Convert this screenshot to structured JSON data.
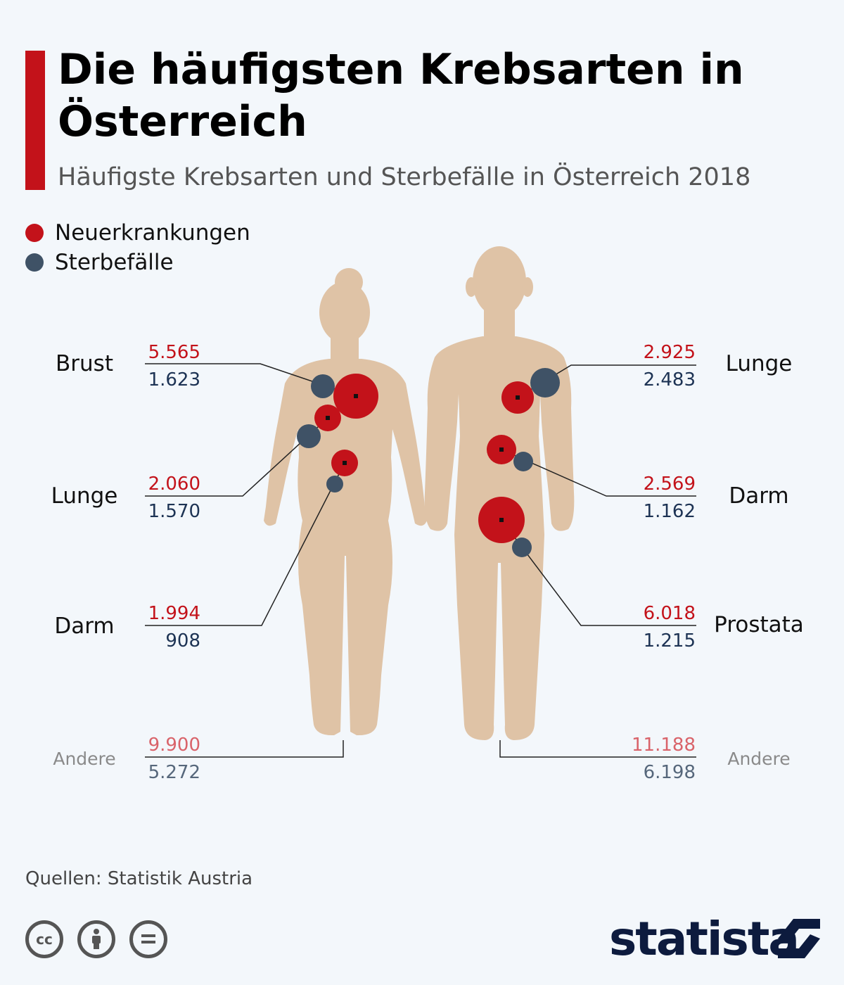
{
  "header": {
    "title": "Die häufigsten Krebsarten in Österreich",
    "subtitle": "Häufigste Krebsarten und Sterbefälle in Österreich 2018"
  },
  "legend": [
    {
      "label": "Neuerkrankungen",
      "color": "#c3121a"
    },
    {
      "label": "Sterbefälle",
      "color": "#3f5266"
    }
  ],
  "colors": {
    "body": "#dfc3a6",
    "new_cases": "#c3121a",
    "deaths": "#3f5266",
    "other_new": "#d9636a",
    "other_deaths": "#56677b"
  },
  "chart_data": {
    "type": "bubble-anatomy",
    "title": "Die häufigsten Krebsarten in Österreich",
    "subtitle": "Häufigste Krebsarten und Sterbefälle in Österreich 2018",
    "groups": [
      {
        "figure": "female",
        "cancers": [
          {
            "organ": "Brust",
            "new_cases": 5565,
            "new_label": "5.565",
            "deaths": 1623,
            "deaths_label": "1.623"
          },
          {
            "organ": "Lunge",
            "new_cases": 2060,
            "new_label": "2.060",
            "deaths": 1570,
            "deaths_label": "1.570"
          },
          {
            "organ": "Darm",
            "new_cases": 1994,
            "new_label": "1.994",
            "deaths": 908,
            "deaths_label": "908"
          }
        ],
        "other": {
          "organ": "Andere",
          "new_cases": 9900,
          "new_label": "9.900",
          "deaths": 5272,
          "deaths_label": "5.272"
        }
      },
      {
        "figure": "male",
        "cancers": [
          {
            "organ": "Lunge",
            "new_cases": 2925,
            "new_label": "2.925",
            "deaths": 2483,
            "deaths_label": "2.483"
          },
          {
            "organ": "Darm",
            "new_cases": 2569,
            "new_label": "2.569",
            "deaths": 1162,
            "deaths_label": "1.162"
          },
          {
            "organ": "Prostata",
            "new_cases": 6018,
            "new_label": "6.018",
            "deaths": 1215,
            "deaths_label": "1.215"
          }
        ],
        "other": {
          "organ": "Andere",
          "new_cases": 11188,
          "new_label": "11.188",
          "deaths": 6198,
          "deaths_label": "6.198"
        }
      }
    ]
  },
  "footer": {
    "source": "Quellen: Statistik Austria",
    "license_icons": [
      "cc-icon",
      "attribution-icon",
      "no-derivatives-icon"
    ],
    "brand": "statista"
  }
}
